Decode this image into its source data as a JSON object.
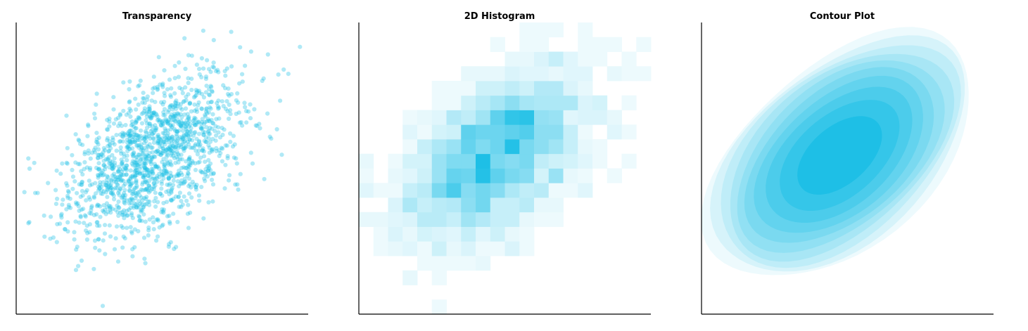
{
  "accent_color": "#1ebfe6",
  "chart_data": [
    {
      "type": "scatter",
      "title": "Transparency",
      "xlabel": "",
      "ylabel": "",
      "grid": false,
      "xlim": [
        -3.6,
        3.6
      ],
      "ylim": [
        -3.6,
        3.6
      ],
      "distribution": {
        "n": 1500,
        "mean": [
          0,
          0
        ],
        "std": [
          1,
          1
        ],
        "corr": 0.5
      },
      "marker_alpha": 0.35
    },
    {
      "type": "heatmap",
      "title": "2D Histogram",
      "xlabel": "",
      "ylabel": "",
      "grid": false,
      "bins": [
        20,
        20
      ],
      "distribution": {
        "n": 1500,
        "mean": [
          0,
          0
        ],
        "std": [
          1,
          1
        ],
        "corr": 0.5
      }
    },
    {
      "type": "contour",
      "title": "Contour Plot",
      "xlabel": "",
      "ylabel": "",
      "grid": false,
      "levels": 10,
      "distribution": {
        "n": 1500,
        "mean": [
          0,
          0
        ],
        "std": [
          1,
          1
        ],
        "corr": 0.5
      }
    }
  ]
}
